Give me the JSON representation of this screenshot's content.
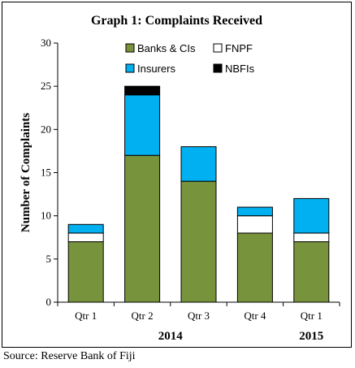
{
  "chart_data": {
    "type": "bar",
    "stacked": true,
    "title": "Graph 1: Complaints Received",
    "ylabel": "Number of Complaints",
    "xlabel": "",
    "ylim": [
      0,
      30
    ],
    "yticks": [
      0,
      5,
      10,
      15,
      20,
      25,
      30
    ],
    "grid": false,
    "legend_position": "top",
    "categories": [
      "Qtr 1",
      "Qtr 2",
      "Qtr 3",
      "Qtr 4",
      "Qtr 1"
    ],
    "year_labels": [
      {
        "label": "2014",
        "categories": [
          0,
          1,
          2,
          3
        ]
      },
      {
        "label": "2015",
        "categories": [
          4
        ]
      }
    ],
    "series": [
      {
        "name": "Banks & CIs",
        "color": "#77933c",
        "values": [
          7,
          17,
          14,
          8,
          7
        ]
      },
      {
        "name": "FNPF",
        "color": "#ffffff",
        "values": [
          1,
          0,
          0,
          2,
          1
        ]
      },
      {
        "name": "Insurers",
        "color": "#00b0f0",
        "values": [
          1,
          7,
          4,
          1,
          4
        ]
      },
      {
        "name": "NBFIs",
        "color": "#000000",
        "values": [
          0,
          1,
          0,
          0,
          0
        ]
      }
    ],
    "legend_order": [
      0,
      1,
      2,
      3
    ]
  },
  "source": "Source: Reserve Bank of Fiji"
}
